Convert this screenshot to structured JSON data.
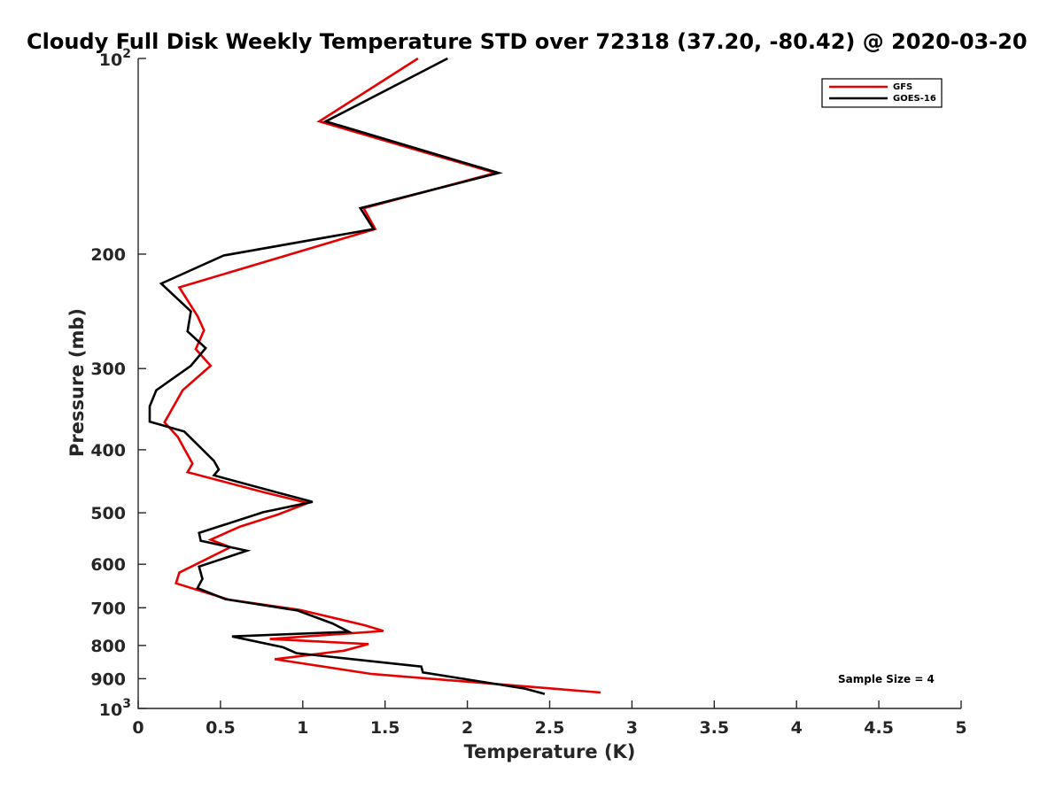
{
  "chart_data": {
    "type": "line",
    "title": "Cloudy Full Disk Weekly Temperature STD over 72318 (37.20, -80.42) @ 2020-03-20",
    "xlabel": "Temperature (K)",
    "ylabel": "Pressure (mb)",
    "xlim": [
      0,
      5
    ],
    "ylim": [
      100,
      1000
    ],
    "yscale": "log",
    "y_reversed": true,
    "x_ticks": [
      0,
      0.5,
      1,
      1.5,
      2,
      2.5,
      3,
      3.5,
      4,
      4.5,
      5
    ],
    "x_tick_labels": [
      "0",
      "0.5",
      "1",
      "1.5",
      "2",
      "2.5",
      "3",
      "3.5",
      "4",
      "4.5",
      "5"
    ],
    "y_ticks": [
      200,
      300,
      400,
      500,
      600,
      700,
      800,
      900
    ],
    "y_tick_labels": [
      "200",
      "300",
      "400",
      "500",
      "600",
      "700",
      "800",
      "900"
    ],
    "y_exp_ticks": [
      {
        "value": 100,
        "base": "10",
        "exp": "2"
      },
      {
        "value": 1000,
        "base": "10",
        "exp": "3"
      }
    ],
    "legend_position": "top-right",
    "annotation": "Sample Size = 4",
    "series": [
      {
        "name": "GFS",
        "color": "#e60000",
        "points": [
          {
            "x": 1.7,
            "y": 100
          },
          {
            "x": 1.1,
            "y": 125
          },
          {
            "x": 2.17,
            "y": 150
          },
          {
            "x": 1.37,
            "y": 170
          },
          {
            "x": 1.44,
            "y": 183
          },
          {
            "x": 0.25,
            "y": 225
          },
          {
            "x": 0.36,
            "y": 249
          },
          {
            "x": 0.4,
            "y": 262
          },
          {
            "x": 0.35,
            "y": 280
          },
          {
            "x": 0.44,
            "y": 297
          },
          {
            "x": 0.27,
            "y": 324
          },
          {
            "x": 0.16,
            "y": 363
          },
          {
            "x": 0.24,
            "y": 382
          },
          {
            "x": 0.33,
            "y": 420
          },
          {
            "x": 0.3,
            "y": 433
          },
          {
            "x": 0.75,
            "y": 464
          },
          {
            "x": 1.03,
            "y": 483
          },
          {
            "x": 0.85,
            "y": 503
          },
          {
            "x": 0.62,
            "y": 525
          },
          {
            "x": 0.44,
            "y": 550
          },
          {
            "x": 0.56,
            "y": 565
          },
          {
            "x": 0.25,
            "y": 618
          },
          {
            "x": 0.23,
            "y": 642
          },
          {
            "x": 0.55,
            "y": 680
          },
          {
            "x": 0.98,
            "y": 705
          },
          {
            "x": 1.38,
            "y": 745
          },
          {
            "x": 1.49,
            "y": 760
          },
          {
            "x": 0.8,
            "y": 782
          },
          {
            "x": 1.4,
            "y": 796
          },
          {
            "x": 1.25,
            "y": 815
          },
          {
            "x": 0.83,
            "y": 840
          },
          {
            "x": 1.42,
            "y": 885
          },
          {
            "x": 2.81,
            "y": 945
          }
        ]
      },
      {
        "name": "GOES-16",
        "color": "#000000",
        "points": [
          {
            "x": 1.88,
            "y": 100
          },
          {
            "x": 1.14,
            "y": 125
          },
          {
            "x": 2.19,
            "y": 150
          },
          {
            "x": 1.35,
            "y": 170
          },
          {
            "x": 1.43,
            "y": 183
          },
          {
            "x": 0.52,
            "y": 201
          },
          {
            "x": 0.14,
            "y": 222
          },
          {
            "x": 0.32,
            "y": 245
          },
          {
            "x": 0.3,
            "y": 263
          },
          {
            "x": 0.41,
            "y": 279
          },
          {
            "x": 0.32,
            "y": 297
          },
          {
            "x": 0.11,
            "y": 324
          },
          {
            "x": 0.07,
            "y": 343
          },
          {
            "x": 0.07,
            "y": 362
          },
          {
            "x": 0.28,
            "y": 375
          },
          {
            "x": 0.46,
            "y": 416
          },
          {
            "x": 0.49,
            "y": 429
          },
          {
            "x": 0.46,
            "y": 438
          },
          {
            "x": 0.84,
            "y": 465
          },
          {
            "x": 1.06,
            "y": 481
          },
          {
            "x": 0.76,
            "y": 499
          },
          {
            "x": 0.37,
            "y": 537
          },
          {
            "x": 0.38,
            "y": 552
          },
          {
            "x": 0.66,
            "y": 572
          },
          {
            "x": 0.37,
            "y": 605
          },
          {
            "x": 0.39,
            "y": 632
          },
          {
            "x": 0.36,
            "y": 653
          },
          {
            "x": 0.53,
            "y": 679
          },
          {
            "x": 0.97,
            "y": 707
          },
          {
            "x": 1.18,
            "y": 740
          },
          {
            "x": 1.28,
            "y": 762
          },
          {
            "x": 0.57,
            "y": 775
          },
          {
            "x": 0.88,
            "y": 805
          },
          {
            "x": 0.96,
            "y": 822
          },
          {
            "x": 1.72,
            "y": 862
          },
          {
            "x": 1.73,
            "y": 880
          },
          {
            "x": 1.97,
            "y": 900
          },
          {
            "x": 2.35,
            "y": 932
          },
          {
            "x": 2.47,
            "y": 950
          }
        ]
      }
    ]
  }
}
